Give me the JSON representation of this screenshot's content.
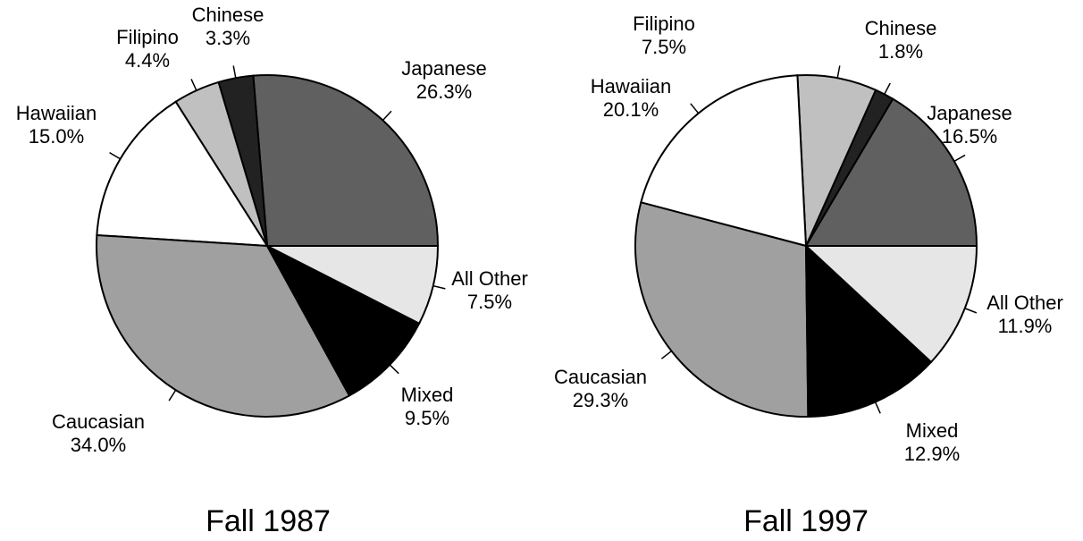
{
  "chart_data": [
    {
      "type": "pie",
      "title": "Fall 1987",
      "categories": [
        "Japanese",
        "Chinese",
        "Filipino",
        "Hawaiian",
        "Caucasian",
        "Mixed",
        "All Other"
      ],
      "values": [
        26.3,
        3.3,
        4.4,
        15.0,
        34.0,
        9.5,
        7.5
      ],
      "value_labels": [
        "26.3%",
        "3.3%",
        "4.4%",
        "15.0%",
        "34.0%",
        "9.5%",
        "7.5%"
      ],
      "colors": [
        "#606060",
        "#222222",
        "#c0c0c0",
        "#ffffff",
        "#a0a0a0",
        "#000000",
        "#e6e6e6"
      ]
    },
    {
      "type": "pie",
      "title": "Fall 1997",
      "categories": [
        "Japanese",
        "Chinese",
        "Filipino",
        "Hawaiian",
        "Caucasian",
        "Mixed",
        "All Other"
      ],
      "values": [
        16.5,
        1.8,
        7.5,
        20.1,
        29.3,
        12.9,
        11.9
      ],
      "value_labels": [
        "16.5%",
        "1.8%",
        "7.5%",
        "20.1%",
        "29.3%",
        "12.9%",
        "11.9%"
      ],
      "colors": [
        "#606060",
        "#222222",
        "#c0c0c0",
        "#ffffff",
        "#a0a0a0",
        "#000000",
        "#e6e6e6"
      ]
    }
  ]
}
